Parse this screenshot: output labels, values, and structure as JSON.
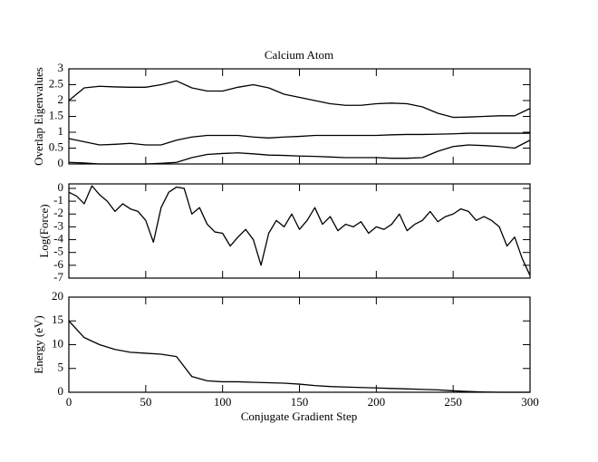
{
  "chart_data": [
    {
      "type": "line",
      "title": "Calcium Atom",
      "ylabel": "Overlap Eigenvalues",
      "x": [
        0,
        10,
        20,
        30,
        40,
        50,
        60,
        70,
        80,
        90,
        100,
        110,
        120,
        130,
        140,
        150,
        160,
        170,
        180,
        190,
        200,
        210,
        220,
        230,
        240,
        250,
        260,
        270,
        280,
        290,
        300
      ],
      "series": [
        {
          "color": "#000000",
          "values": [
            2.0,
            2.4,
            2.45,
            2.43,
            2.42,
            2.42,
            2.5,
            2.62,
            2.4,
            2.3,
            2.3,
            2.42,
            2.5,
            2.4,
            2.2,
            2.1,
            2.0,
            1.9,
            1.85,
            1.85,
            1.9,
            1.92,
            1.9,
            1.8,
            1.6,
            1.47,
            1.48,
            1.5,
            1.52,
            1.52,
            1.75
          ]
        },
        {
          "color": "#000000",
          "values": [
            0.8,
            0.7,
            0.6,
            0.62,
            0.65,
            0.6,
            0.6,
            0.75,
            0.85,
            0.9,
            0.9,
            0.9,
            0.85,
            0.82,
            0.85,
            0.87,
            0.9,
            0.9,
            0.9,
            0.9,
            0.9,
            0.92,
            0.93,
            0.93,
            0.94,
            0.95,
            0.97,
            0.97,
            0.97,
            0.97,
            0.97
          ]
        },
        {
          "color": "#000000",
          "values": [
            0.05,
            0.03,
            0.0,
            0.0,
            0.0,
            0.0,
            0.02,
            0.05,
            0.2,
            0.3,
            0.33,
            0.35,
            0.32,
            0.28,
            0.27,
            0.25,
            0.24,
            0.22,
            0.2,
            0.2,
            0.2,
            0.18,
            0.18,
            0.2,
            0.4,
            0.55,
            0.6,
            0.58,
            0.55,
            0.5,
            0.75
          ]
        }
      ],
      "ylim": [
        0,
        3
      ],
      "yticks": [
        0,
        0.5,
        1,
        1.5,
        2,
        2.5,
        3
      ]
    },
    {
      "type": "line",
      "ylabel": "Log(Force)",
      "x": [
        0,
        5,
        10,
        15,
        20,
        25,
        30,
        35,
        40,
        45,
        50,
        55,
        60,
        65,
        70,
        75,
        80,
        85,
        90,
        95,
        100,
        105,
        110,
        115,
        120,
        125,
        130,
        135,
        140,
        145,
        150,
        155,
        160,
        165,
        170,
        175,
        180,
        185,
        190,
        195,
        200,
        205,
        210,
        215,
        220,
        225,
        230,
        235,
        240,
        245,
        250,
        255,
        260,
        265,
        270,
        275,
        280,
        285,
        290,
        295,
        300
      ],
      "series": [
        {
          "color": "#000000",
          "values": [
            -0.3,
            -0.6,
            -1.2,
            0.2,
            -0.5,
            -1.0,
            -1.8,
            -1.2,
            -1.6,
            -1.8,
            -2.5,
            -4.2,
            -1.5,
            -0.3,
            0.1,
            0,
            -2,
            -1.5,
            -2.8,
            -3.4,
            -3.5,
            -4.5,
            -3.8,
            -3.2,
            -4.0,
            -6.0,
            -3.5,
            -2.5,
            -3.0,
            -2.0,
            -3.2,
            -2.5,
            -1.5,
            -2.8,
            -2.2,
            -3.3,
            -2.8,
            -3.0,
            -2.6,
            -3.5,
            -3.0,
            -3.2,
            -2.8,
            -2.0,
            -3.3,
            -2.8,
            -2.5,
            -1.8,
            -2.6,
            -2.2,
            -2.0,
            -1.6,
            -1.8,
            -2.5,
            -2.2,
            -2.5,
            -3.0,
            -4.5,
            -3.8,
            -5.5,
            -6.8
          ]
        }
      ],
      "ylim": [
        -7,
        0.35
      ],
      "yticks": [
        0,
        -1,
        -2,
        -3,
        -4,
        -5,
        -6,
        -7
      ]
    },
    {
      "type": "line",
      "ylabel": "Energy (eV)",
      "xlabel": "Conjugate Gradient Step",
      "x": [
        0,
        10,
        20,
        30,
        40,
        50,
        60,
        70,
        80,
        90,
        100,
        110,
        120,
        130,
        140,
        150,
        160,
        170,
        180,
        190,
        200,
        210,
        220,
        230,
        240,
        250,
        260,
        270,
        280,
        290,
        300
      ],
      "series": [
        {
          "color": "#000000",
          "values": [
            15,
            11.5,
            10,
            9,
            8.4,
            8.2,
            8.0,
            7.5,
            3.3,
            2.4,
            2.2,
            2.2,
            2.1,
            2.0,
            1.9,
            1.7,
            1.4,
            1.2,
            1.1,
            1.0,
            0.9,
            0.8,
            0.7,
            0.6,
            0.5,
            0.3,
            0.15,
            0.05,
            0,
            0,
            0
          ]
        }
      ],
      "xlim": [
        0,
        300
      ],
      "xticks": [
        0,
        50,
        100,
        150,
        200,
        250,
        300
      ],
      "ylim": [
        0,
        20
      ],
      "yticks": [
        0,
        5,
        10,
        15,
        20
      ]
    }
  ]
}
